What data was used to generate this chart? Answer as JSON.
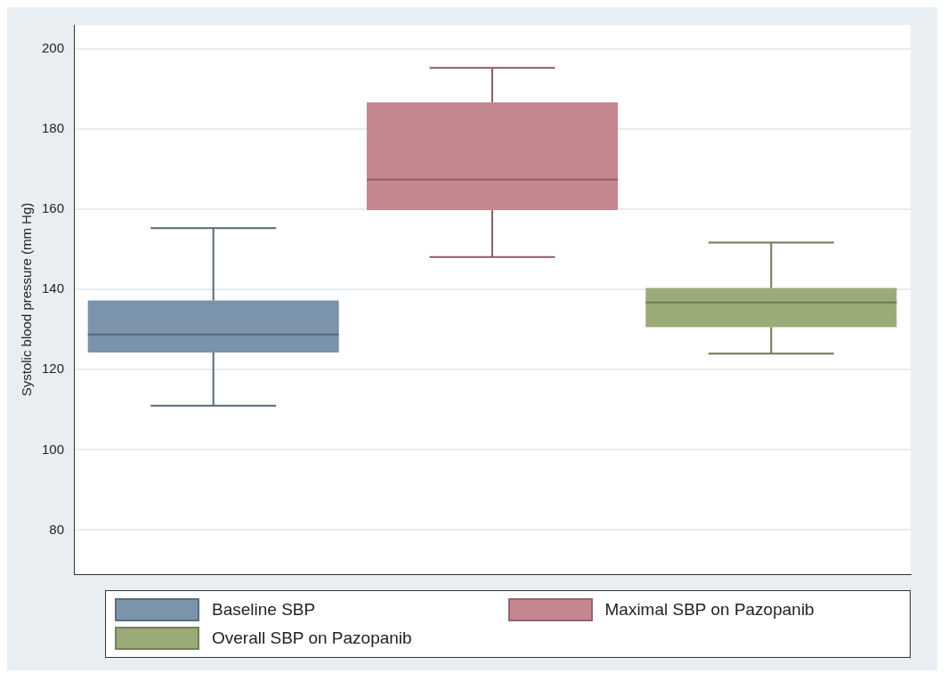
{
  "chart_data": {
    "type": "box",
    "ylabel": "Systolic blood pressure (mm Hg)",
    "categories": [
      null,
      null,
      null
    ],
    "series": [
      {
        "name": "Baseline SBP",
        "color": "#7b93ab",
        "boxes": [
          {
            "low": 111,
            "q1": 124.3,
            "median": 128.8,
            "q3": 137.3,
            "high": 155.3
          },
          null,
          null
        ]
      },
      {
        "name": "Maximal SBP on Pazopanib",
        "color": "#c4868f",
        "boxes": [
          null,
          {
            "low": 148.1,
            "q1": 159.8,
            "median": 167.4,
            "q3": 186.7,
            "high": 195.3
          },
          null
        ]
      },
      {
        "name": "Overall SBP on Pazopanib",
        "color": "#9aab78",
        "boxes": [
          null,
          null,
          {
            "low": 124,
            "q1": 130.6,
            "median": 136.8,
            "q3": 140.4,
            "high": 151.7
          }
        ]
      }
    ],
    "ylim": [
      69,
      206
    ],
    "yticks": [
      80,
      100,
      120,
      140,
      160,
      180,
      200
    ],
    "grid": "y",
    "legend": "bottom",
    "tick_labels": "y"
  }
}
